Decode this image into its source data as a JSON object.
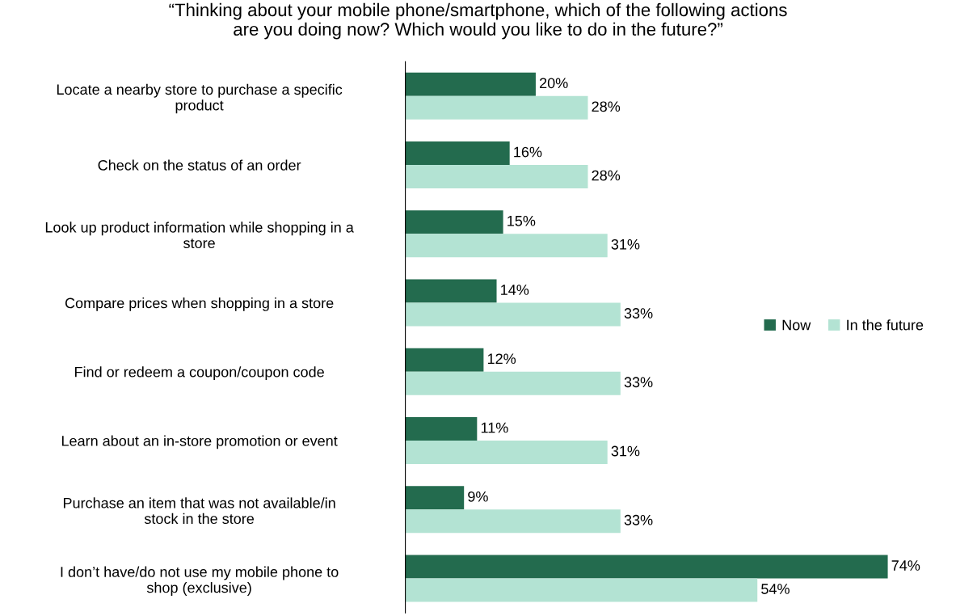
{
  "chart_data": {
    "type": "bar",
    "orientation": "horizontal",
    "title": "“Thinking about your mobile phone/smartphone, which of the following actions\nare you doing now? Which would you like to do in the future?”",
    "categories": [
      "Locate a nearby store to purchase a specific\nproduct",
      "Check on the status of an order",
      "Look up product information while shopping in a\nstore",
      "Compare prices when shopping in a store",
      "Find or redeem a coupon/coupon code",
      "Learn about an in-store promotion or event",
      "Purchase an item that was not available/in\nstock in the store",
      "I don’t have/do not use my mobile phone to\nshop (exclusive)"
    ],
    "series": [
      {
        "name": "Now",
        "color": "#236b4e",
        "values": [
          20,
          16,
          15,
          14,
          12,
          11,
          9,
          74
        ],
        "value_labels": [
          "20%",
          "16%",
          "15%",
          "14%",
          "12%",
          "11%",
          "9%",
          "74%"
        ]
      },
      {
        "name": "In the future",
        "color": "#b3e3d3",
        "values": [
          28,
          28,
          31,
          33,
          33,
          31,
          33,
          54
        ],
        "value_labels": [
          "28%",
          "28%",
          "31%",
          "33%",
          "33%",
          "31%",
          "33%",
          "54%"
        ]
      }
    ],
    "legend": "right",
    "grid": false
  }
}
